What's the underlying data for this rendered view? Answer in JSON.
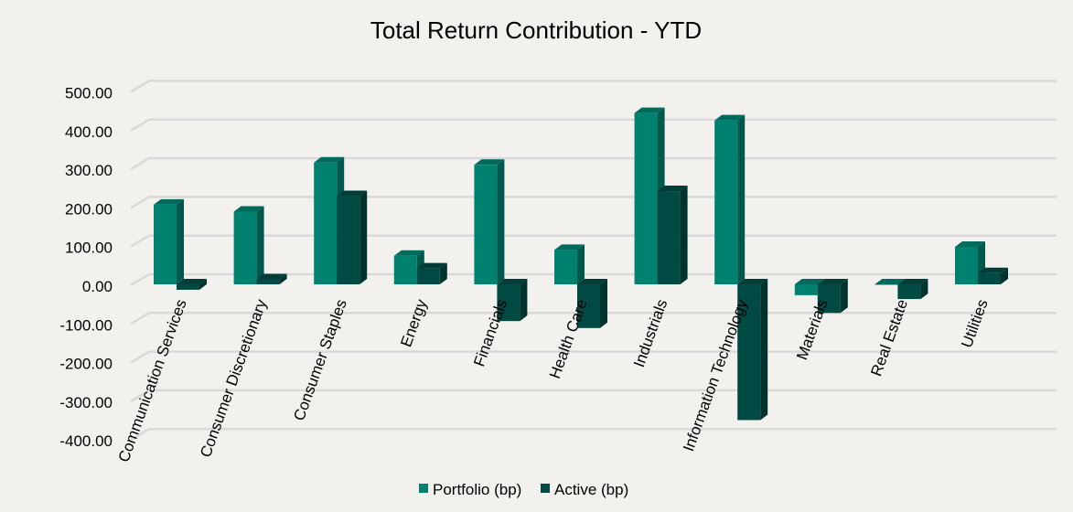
{
  "chart_data": {
    "type": "bar",
    "title": "Total Return Contribution - YTD",
    "xlabel": "",
    "ylabel": "",
    "ylim": [
      -400,
      500
    ],
    "yticks": [
      "500.00",
      "400.00",
      "300.00",
      "200.00",
      "100.00",
      "0.00",
      "-100.00",
      "-200.00",
      "-300.00",
      "-400.00"
    ],
    "ytick_values": [
      500,
      400,
      300,
      200,
      100,
      0,
      -100,
      -200,
      -300,
      -400
    ],
    "grid": true,
    "legend_position": "bottom",
    "categories": [
      "Communication Services",
      "Consumer Discretionary",
      "Consumer Staples",
      "Energy",
      "Financials",
      "Health Care",
      "Industrials",
      "Information Technology",
      "Materials",
      "Real Estate",
      "Utilities"
    ],
    "series": [
      {
        "name": "Portfolio (bp)",
        "color": "#00806F",
        "values": [
          206,
          188,
          315,
          74,
          309,
          89,
          443,
          424,
          -28,
          -1,
          97
        ]
      },
      {
        "name": "Active (bp)",
        "color": "#004A44",
        "values": [
          -14,
          13,
          228,
          41,
          -95,
          -113,
          241,
          -351,
          -74,
          -38,
          29
        ]
      }
    ]
  }
}
